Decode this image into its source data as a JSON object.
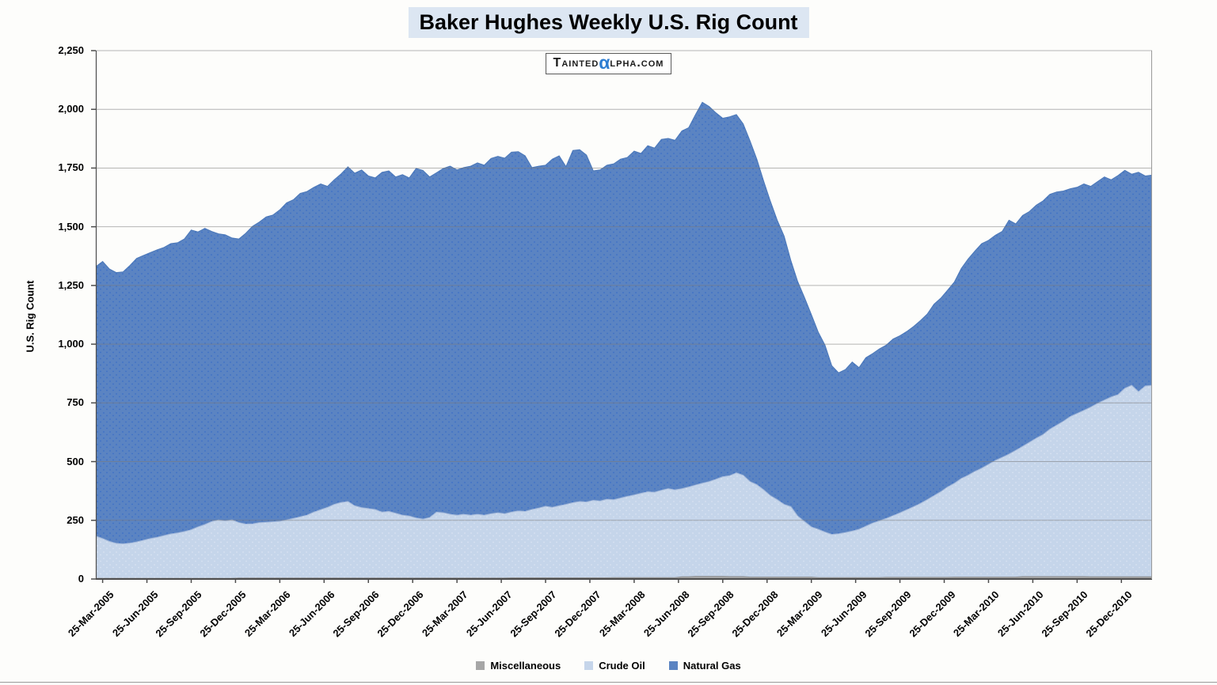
{
  "title": "Baker Hughes Weekly U.S. Rig Count",
  "logo": {
    "prefix": "Tainted",
    "alpha": "α",
    "suffix": "lpha.com",
    "alpha_color": "#2d7dd2"
  },
  "y_axis": {
    "title": "U.S. Rig Count",
    "step": 250,
    "ticks": [
      "0",
      "250",
      "500",
      "750",
      "1,000",
      "1,250",
      "1,500",
      "1,750",
      "2,000",
      "2,250"
    ]
  },
  "legend": [
    {
      "label": "Miscellaneous",
      "color": "#a6a6a6"
    },
    {
      "label": "Crude Oil",
      "color": "#c5d5ea"
    },
    {
      "label": "Natural Gas",
      "color": "#5b84c2"
    }
  ],
  "colors": {
    "title_band": "#dce6f2",
    "grid": "#7a7a7a",
    "axis": "#4d4d4d",
    "plot_right_border": "#9a9a9a"
  },
  "chart_data": {
    "type": "area",
    "stacked": true,
    "title": "Baker Hughes Weekly U.S. Rig Count",
    "ylabel": "U.S. Rig Count",
    "xlabel": "",
    "ylim": [
      0,
      2250
    ],
    "grid": true,
    "legend_position": "bottom",
    "x_unit": "weeks",
    "x_span_weeks": 310,
    "point_step_weeks": 2,
    "first_tick_week": 2,
    "tick_step_weeks": 13,
    "x_tick_labels": [
      "25-Mar-2005",
      "25-Jun-2005",
      "25-Sep-2005",
      "25-Dec-2005",
      "25-Mar-2006",
      "25-Jun-2006",
      "25-Sep-2006",
      "25-Dec-2006",
      "25-Mar-2007",
      "25-Jun-2007",
      "25-Sep-2007",
      "25-Dec-2007",
      "25-Mar-2008",
      "25-Jun-2008",
      "25-Sep-2008",
      "25-Dec-2008",
      "25-Mar-2009",
      "25-Jun-2009",
      "25-Sep-2009",
      "25-Dec-2009",
      "25-Mar-2010",
      "25-Jun-2010",
      "25-Sep-2010",
      "25-Dec-2010"
    ],
    "series": [
      {
        "name": "Miscellaneous",
        "color": "#a6a6a6",
        "edge": "#8c8c8c",
        "values": [
          3,
          3,
          3,
          3,
          3,
          3,
          3,
          3,
          3,
          3,
          3,
          3,
          3,
          3,
          3,
          3,
          3,
          3,
          3,
          3,
          3,
          4,
          4,
          4,
          4,
          4,
          4,
          4,
          4,
          4,
          4,
          4,
          4,
          4,
          4,
          4,
          4,
          4,
          4,
          4,
          4,
          4,
          4,
          4,
          4,
          4,
          4,
          4,
          4,
          4,
          4,
          4,
          4,
          4,
          4,
          4,
          4,
          4,
          4,
          4,
          4,
          5,
          5,
          5,
          5,
          5,
          5,
          5,
          5,
          5,
          5,
          5,
          5,
          5,
          5,
          5,
          6,
          6,
          6,
          6,
          6,
          6,
          6,
          6,
          6,
          6,
          9,
          9,
          11,
          11,
          11,
          11,
          11,
          10,
          10,
          10,
          8,
          8,
          8,
          8,
          8,
          8,
          8,
          8,
          8,
          8,
          6,
          6,
          6,
          6,
          6,
          6,
          6,
          6,
          6,
          6,
          7,
          7,
          7,
          7,
          7,
          7,
          7,
          7,
          7,
          7,
          8,
          8,
          8,
          8,
          8,
          8,
          8,
          8,
          8,
          8,
          10,
          10,
          10,
          10,
          10,
          10,
          10,
          10,
          10,
          10,
          9,
          9,
          9,
          9,
          9,
          9,
          9,
          9,
          9,
          9
        ]
      },
      {
        "name": "Crude Oil",
        "color": "#c5d5ea",
        "dot": "#d8e2f2",
        "edge": "#a3b8da",
        "values": [
          180,
          169,
          157,
          149,
          147,
          150,
          155,
          162,
          169,
          175,
          182,
          189,
          193,
          199,
          207,
          219,
          229,
          242,
          249,
          245,
          249,
          236,
          230,
          231,
          236,
          238,
          240,
          242,
          248,
          254,
          261,
          268,
          281,
          291,
          301,
          314,
          322,
          326,
          308,
          300,
          296,
          292,
          281,
          284,
          276,
          268,
          264,
          256,
          251,
          258,
          281,
          278,
          272,
          268,
          272,
          268,
          272,
          268,
          274,
          278,
          274,
          280,
          285,
          283,
          291,
          297,
          305,
          300,
          307,
          313,
          320,
          325,
          323,
          330,
          327,
          335,
          332,
          339,
          346,
          352,
          359,
          366,
          364,
          372,
          379,
          374,
          376,
          383,
          389,
          397,
          404,
          414,
          425,
          430,
          442,
          432,
          407,
          394,
          372,
          347,
          330,
          310,
          300,
          260,
          237,
          214,
          206,
          194,
          184,
          187,
          192,
          198,
          206,
          219,
          232,
          242,
          251,
          263,
          275,
          288,
          301,
          315,
          331,
          348,
          365,
          385,
          400,
          420,
          434,
          450,
          464,
          480,
          497,
          510,
          524,
          540,
          555,
          572,
          590,
          605,
          628,
          645,
          662,
          682,
          695,
          708,
          723,
          739,
          753,
          766,
          776,
          803,
          816,
          789,
          813,
          816
        ]
      },
      {
        "name": "Natural Gas",
        "color": "#5b84c2",
        "dot": "#3c70c8",
        "edge": "#4a77b8",
        "values": [
          1147,
          1180,
          1160,
          1153,
          1158,
          1182,
          1207,
          1213,
          1218,
          1224,
          1227,
          1236,
          1236,
          1246,
          1276,
          1256,
          1261,
          1235,
          1218,
          1218,
          1200,
          1208,
          1238,
          1267,
          1280,
          1300,
          1306,
          1326,
          1350,
          1357,
          1377,
          1378,
          1383,
          1387,
          1367,
          1382,
          1399,
          1425,
          1416,
          1438,
          1416,
          1412,
          1447,
          1450,
          1432,
          1450,
          1440,
          1488,
          1485,
          1450,
          1445,
          1466,
          1482,
          1470,
          1476,
          1486,
          1496,
          1490,
          1513,
          1518,
          1514,
          1533,
          1530,
          1514,
          1456,
          1456,
          1452,
          1483,
          1490,
          1438,
          1500,
          1498,
          1477,
          1403,
          1410,
          1422,
          1430,
          1443,
          1443,
          1464,
          1447,
          1473,
          1465,
          1494,
          1491,
          1488,
          1523,
          1530,
          1578,
          1622,
          1597,
          1560,
          1526,
          1528,
          1526,
          1496,
          1451,
          1386,
          1315,
          1253,
          1190,
          1142,
          1047,
          998,
          953,
          904,
          840,
          796,
          718,
          685,
          694,
          720,
          688,
          717,
          722,
          732,
          738,
          752,
          754,
          759,
          767,
          778,
          790,
          815,
          824,
          838,
          857,
          894,
          920,
          938,
          956,
          954,
          959,
          962,
          996,
          964,
          983,
          983,
          992,
          995,
          1000,
          993,
          980,
          970,
          963,
          964,
          940,
          944,
          950,
          925,
          933,
          928,
          899,
          934,
          894,
          895
        ]
      }
    ]
  }
}
